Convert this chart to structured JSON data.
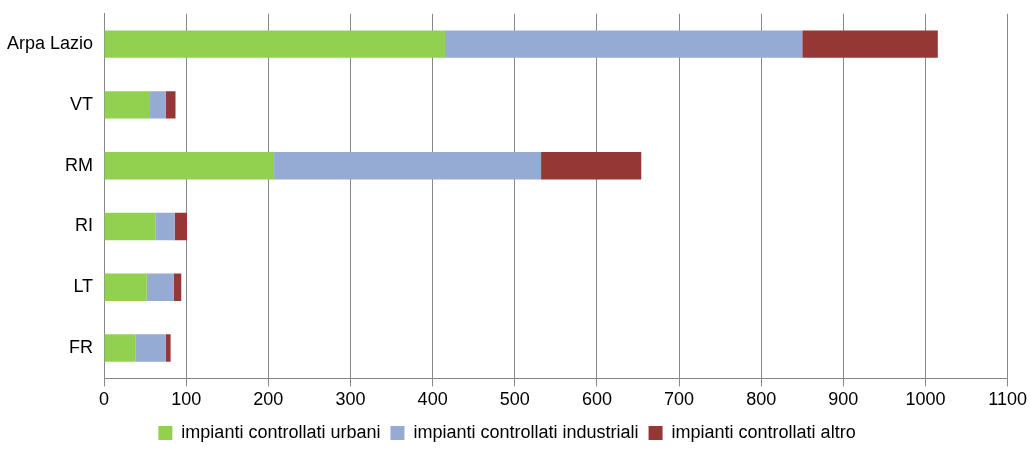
{
  "chart_data": {
    "type": "bar",
    "orientation": "horizontal",
    "stacked": true,
    "categories": [
      "Arpa Lazio",
      "VT",
      "RM",
      "RI",
      "LT",
      "FR"
    ],
    "series": [
      {
        "name": "impianti controllati urbani",
        "color": "#92d050",
        "values": [
          415,
          56,
          207,
          63,
          52,
          38
        ]
      },
      {
        "name": "impianti controllati industriali",
        "color": "#95abd4",
        "values": [
          435,
          19,
          325,
          23,
          33,
          37
        ]
      },
      {
        "name": "impianti controllati altro",
        "color": "#953735",
        "values": [
          165,
          12,
          122,
          15,
          9,
          6
        ]
      }
    ],
    "xlim": [
      0,
      1100
    ],
    "xticks": [
      0,
      100,
      200,
      300,
      400,
      500,
      600,
      700,
      800,
      900,
      1000,
      1100
    ],
    "grid": "x",
    "legend": "bottom"
  }
}
